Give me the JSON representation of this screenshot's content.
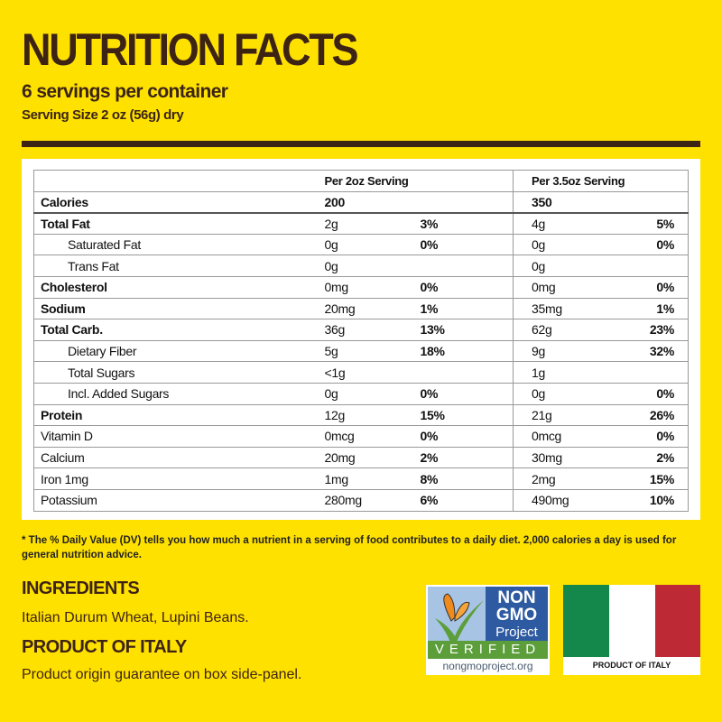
{
  "title": "NUTRITION FACTS",
  "servings": "6 servings per container",
  "serving_size": "Serving Size 2 oz (56g) dry",
  "table": {
    "headers": [
      "",
      "Per 2oz Serving",
      "Per 3.5oz Serving"
    ],
    "calories": {
      "label": "Calories",
      "v1": "200",
      "v2": "350"
    },
    "rows": [
      {
        "label": "Total Fat",
        "v1": "2g",
        "p1": "3%",
        "v2": "4g",
        "p2": "5%",
        "bold": true
      },
      {
        "label": "Saturated Fat",
        "v1": "0g",
        "p1": "0%",
        "v2": "0g",
        "p2": "0%",
        "indent": true
      },
      {
        "label": "Trans Fat",
        "v1": "0g",
        "p1": "",
        "v2": "0g",
        "p2": "",
        "indent": true
      },
      {
        "label": "Cholesterol",
        "v1": "0mg",
        "p1": "0%",
        "v2": "0mg",
        "p2": "0%",
        "bold": true
      },
      {
        "label": "Sodium",
        "v1": "20mg",
        "p1": "1%",
        "v2": "35mg",
        "p2": "1%",
        "bold": true
      },
      {
        "label": "Total Carb.",
        "v1": "36g",
        "p1": "13%",
        "v2": "62g",
        "p2": "23%",
        "bold": true
      },
      {
        "label": "Dietary Fiber",
        "v1": "5g",
        "p1": "18%",
        "v2": "9g",
        "p2": "32%",
        "indent": true
      },
      {
        "label": "Total Sugars",
        "v1": "<1g",
        "p1": "",
        "v2": "1g",
        "p2": "",
        "indent": true
      },
      {
        "label": "Incl. Added Sugars",
        "v1": "0g",
        "p1": "0%",
        "v2": "0g",
        "p2": "0%",
        "indent": true
      },
      {
        "label": "Protein",
        "v1": "12g",
        "p1": "15%",
        "v2": "21g",
        "p2": "26%",
        "bold": true
      },
      {
        "label": "Vitamin D",
        "v1": "0mcg",
        "p1": "0%",
        "v2": "0mcg",
        "p2": "0%"
      },
      {
        "label": "Calcium",
        "v1": "20mg",
        "p1": "2%",
        "v2": "30mg",
        "p2": "2%"
      },
      {
        "label": "Iron 1mg",
        "v1": "1mg",
        "p1": "8%",
        "v2": "2mg",
        "p2": "15%"
      },
      {
        "label": "Potassium",
        "v1": "280mg",
        "p1": "6%",
        "v2": "490mg",
        "p2": "10%"
      }
    ]
  },
  "footnote": "* The % Daily Value (DV) tells you how much a nutrient in a serving of food contributes to a daily diet. 2,000 calories a day is used for general nutrition advice.",
  "ingredients_heading": "INGREDIENTS",
  "ingredients": "Italian Durum Wheat, Lupini Beans.",
  "origin_heading": "PRODUCT OF ITALY",
  "origin_text": "Product origin guarantee on box side-panel.",
  "nongmo": {
    "line1": "NON",
    "line2": "GMO",
    "line3": "Project",
    "verified": "VERIFIED",
    "url": "nongmoproject.org"
  },
  "flag_caption": "PRODUCT OF ITALY"
}
